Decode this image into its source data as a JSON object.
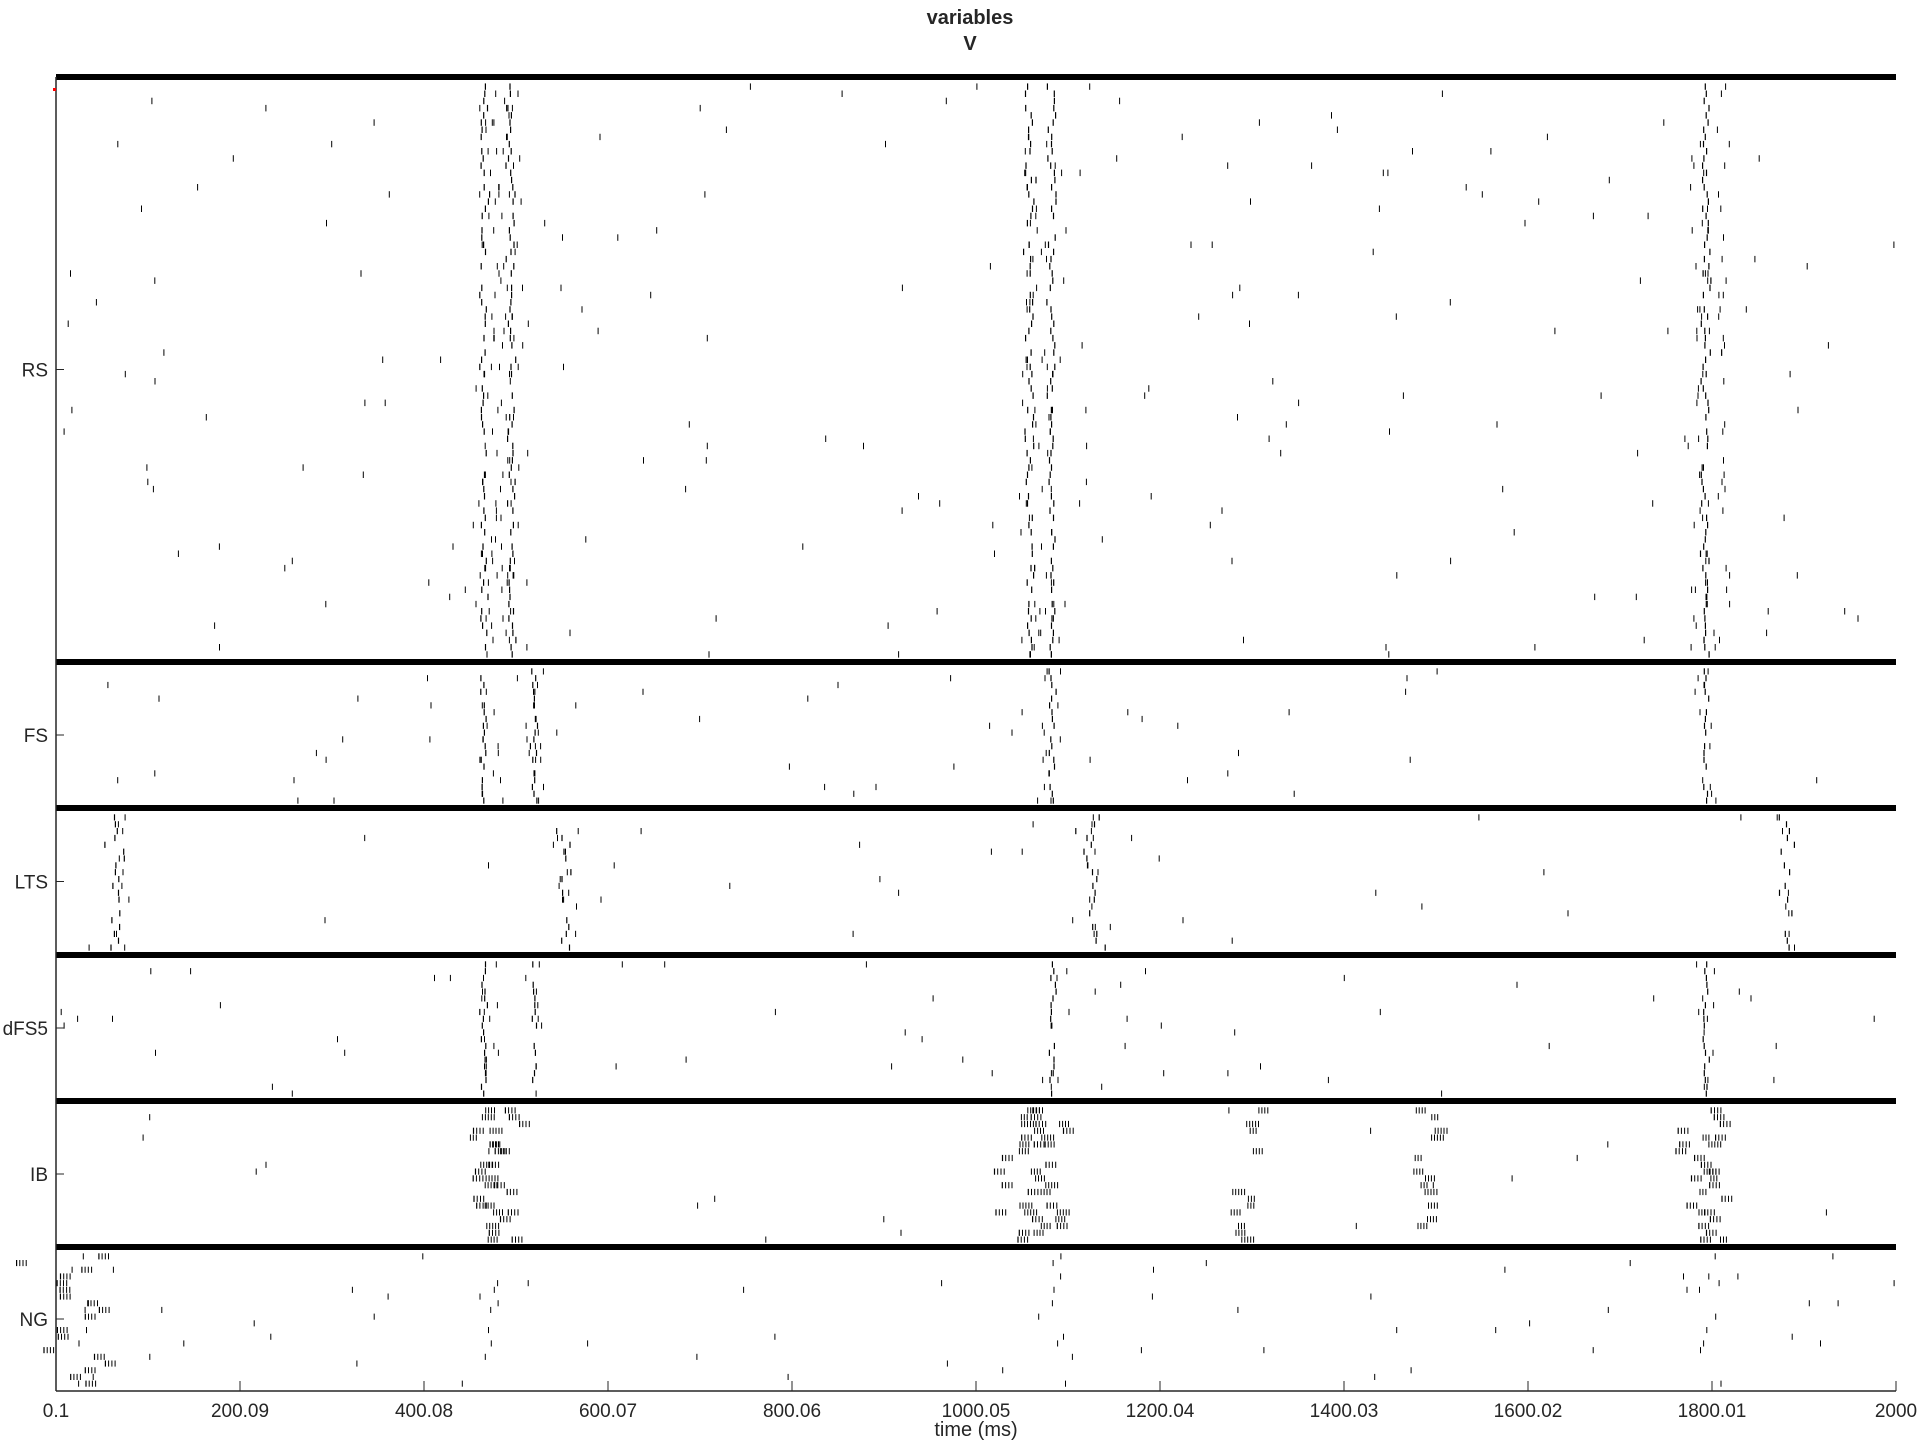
{
  "chart_data": {
    "type": "scatter",
    "title": [
      "variables",
      "V"
    ],
    "xlabel": "time (ms)",
    "ylabel": "",
    "xlim": [
      0.1,
      2000
    ],
    "x_tick_values": [
      0.1,
      200.09,
      400.08,
      600.07,
      800.06,
      1000.05,
      1200.04,
      1400.03,
      1600.02,
      1800.01,
      2000
    ],
    "x_tick_labels": [
      "0.1",
      "200.09",
      "400.08",
      "600.07",
      "800.06",
      "1000.05",
      "1200.04",
      "1400.03",
      "1600.02",
      "1800.01",
      "2000"
    ],
    "grid": false,
    "legend": "none",
    "marker": "vertical tick (spike)",
    "colors": {
      "spike": "#000000",
      "separator": "#000000",
      "axis": "#262626",
      "marker_red": "#ff0000"
    },
    "populations": [
      {
        "name": "RS",
        "rows": 80,
        "spike_density": 0.012,
        "burst_times": [
          470,
          480,
          495,
          1060,
          1080,
          1790,
          1810
        ],
        "sync_events": [
          {
            "t": 465,
            "w": 4
          },
          {
            "t": 495,
            "w": 4
          },
          {
            "t": 1058,
            "w": 4
          },
          {
            "t": 1083,
            "w": 4
          },
          {
            "t": 1793,
            "w": 4
          }
        ]
      },
      {
        "name": "FS",
        "rows": 20,
        "spike_density": 0.014,
        "burst_times": [
          470,
          520,
          1080,
          1795
        ],
        "sync_events": [
          {
            "t": 465,
            "w": 3
          },
          {
            "t": 520,
            "w": 3
          },
          {
            "t": 1083,
            "w": 3
          },
          {
            "t": 1793,
            "w": 3
          }
        ]
      },
      {
        "name": "LTS",
        "rows": 20,
        "spike_density": 0.006,
        "burst_times": [
          70,
          555,
          1125,
          1880
        ],
        "sync_events": [
          {
            "t": 65,
            "w": 8
          },
          {
            "t": 555,
            "w": 8
          },
          {
            "t": 1125,
            "w": 10
          },
          {
            "t": 1880,
            "w": 8
          }
        ]
      },
      {
        "name": "dFS5",
        "rows": 20,
        "spike_density": 0.014,
        "burst_times": [
          470,
          520,
          1080,
          1795
        ],
        "sync_events": [
          {
            "t": 465,
            "w": 3
          },
          {
            "t": 520,
            "w": 3
          },
          {
            "t": 1083,
            "w": 3
          },
          {
            "t": 1793,
            "w": 3
          }
        ]
      },
      {
        "name": "IB",
        "rows": 20,
        "spike_density": 0.004,
        "burst_times": [
          470,
          1050,
          1080,
          1290,
          1490,
          1790
        ],
        "sync_events": [
          {
            "t": 468,
            "w": 30
          },
          {
            "t": 1055,
            "w": 30
          },
          {
            "t": 1790,
            "w": 30
          }
        ]
      },
      {
        "name": "NG",
        "rows": 20,
        "spike_density": 0.012,
        "burst_times": [
          25,
          470,
          1090,
          1800
        ],
        "sync_events": [
          {
            "t": 25,
            "w": 50
          }
        ]
      }
    ]
  }
}
